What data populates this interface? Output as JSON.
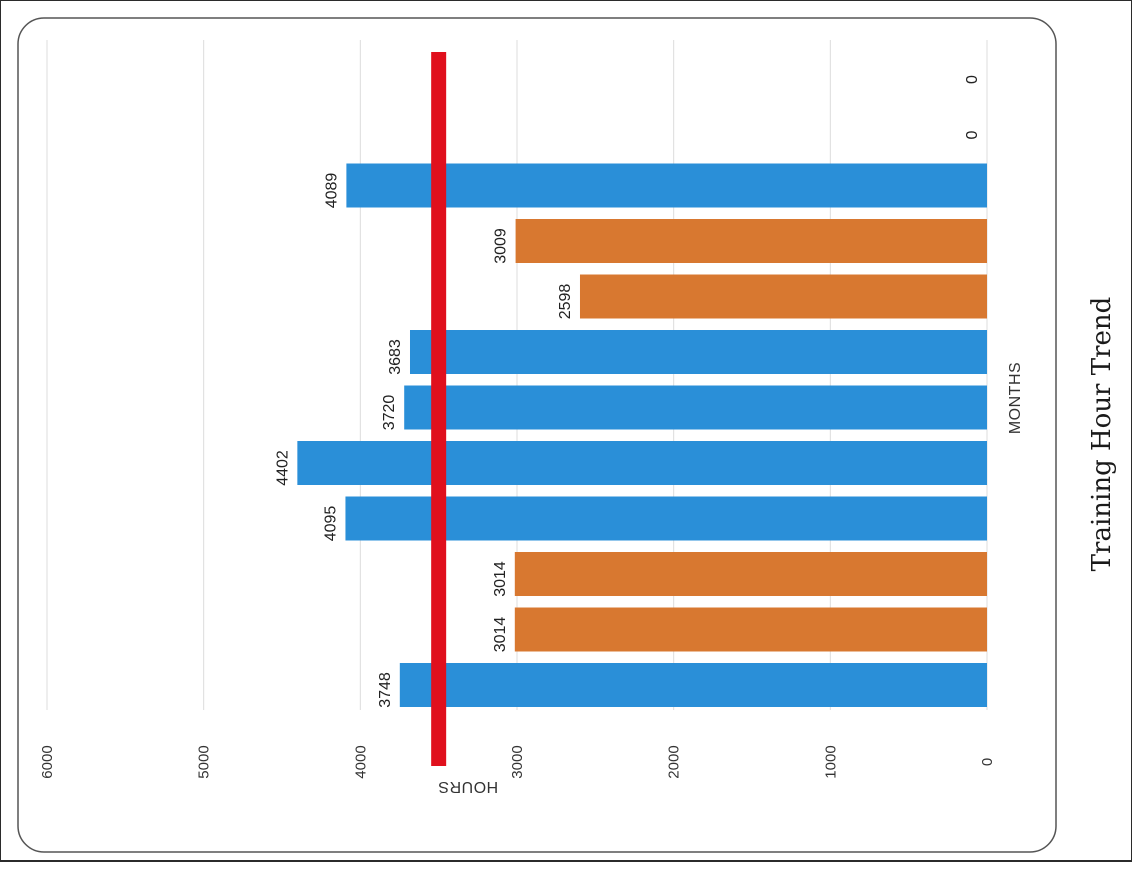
{
  "chart_data": {
    "type": "bar",
    "title": "Training Hour Trend",
    "xlabel": "MONTHS",
    "ylabel": "HOURS",
    "ylim": [
      0,
      6000
    ],
    "yticks": [
      0,
      1000,
      2000,
      3000,
      4000,
      5000,
      6000
    ],
    "grid": true,
    "legend": "none",
    "target_line": {
      "value": 3500,
      "color": "#e0101d"
    },
    "values": [
      3748,
      3014,
      3014,
      4095,
      4402,
      3720,
      3683,
      2598,
      3009,
      4089,
      0,
      0
    ],
    "bar_colors": [
      "#2a8fd8",
      "#d87830",
      "#d87830",
      "#2a8fd8",
      "#2a8fd8",
      "#2a8fd8",
      "#2a8fd8",
      "#d87830",
      "#d87830",
      "#2a8fd8",
      "#2a8fd8",
      "#2a8fd8"
    ],
    "data_labels": [
      "3748",
      "3014",
      "3014",
      "4095",
      "4402",
      "3720",
      "3683",
      "2598",
      "3009",
      "4089",
      "0",
      "0"
    ]
  }
}
